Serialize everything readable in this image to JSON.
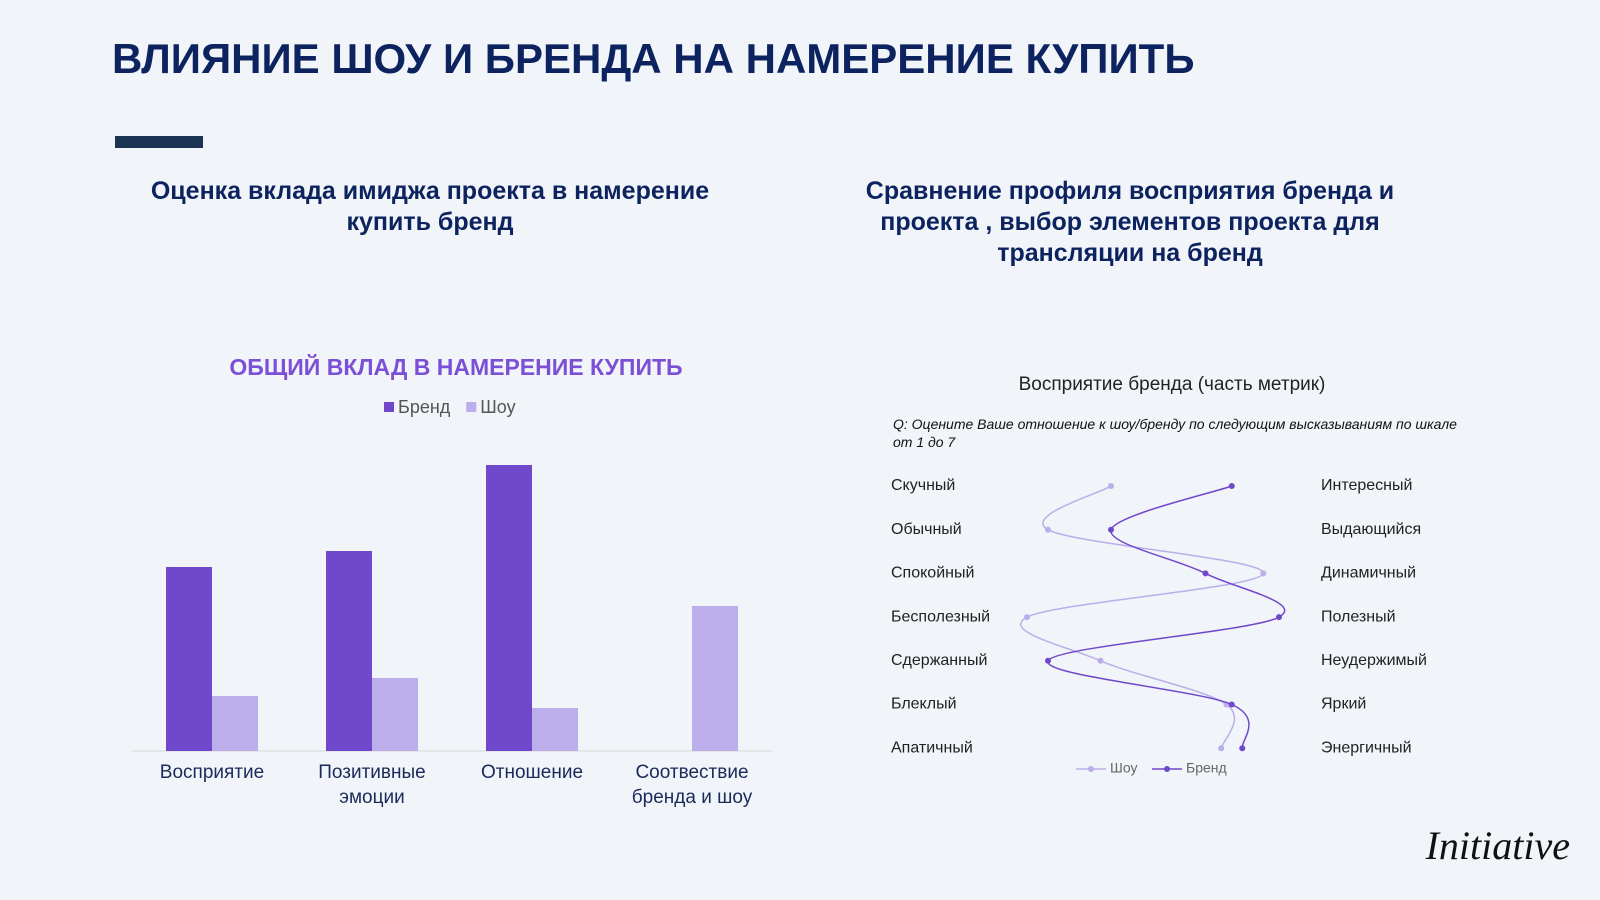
{
  "header": {
    "title": "ВЛИЯНИЕ ШОУ И БРЕНДА НА НАМЕРЕНИЕ КУПИТЬ"
  },
  "sections": [
    {
      "heading": "Оценка вклада имиджа проекта в намерение купить бренд"
    },
    {
      "heading": "Сравнение профиля восприятия бренда и проекта , выбор элементов проекта для трансляции на бренд"
    }
  ],
  "logo": "Initiative",
  "chart_data": [
    {
      "type": "bar",
      "title": "ОБЩИЙ ВКЛАД В НАМЕРЕНИЕ КУПИТЬ",
      "categories": [
        "Восприятие",
        "Позитивные эмоции",
        "Отношение",
        "Соотвествие бренда и шоу"
      ],
      "series": [
        {
          "name": "Бренд",
          "color": "#7048cc",
          "values": [
            184,
            200,
            286,
            null
          ]
        },
        {
          "name": "Шоу",
          "color": "#bbaeea",
          "values": [
            55,
            73,
            43,
            145
          ]
        }
      ],
      "ylim": [
        0,
        300
      ],
      "legend": "top"
    },
    {
      "type": "line",
      "orientation": "horizontal",
      "title": "Восприятие бренда (часть метрик)",
      "question": "Q: Оцените Ваше отношение к шоу/бренду по следующим высказываниям по шкале от  1 до 7",
      "categories": [
        "Скучный",
        "Обычный",
        "Спокойный",
        "Бесполезный",
        "Сдержанный",
        "Блеклый",
        "Апатичный"
      ],
      "right_labels": [
        "Интересный",
        "Выдающийся",
        "Динамичный",
        "Полезный",
        "Неудержимый",
        "Яркий",
        "Энергичный"
      ],
      "series": [
        {
          "name": "Шоу",
          "color": "#bbaeea",
          "values": [
            3.4,
            2.2,
            6.3,
            1.8,
            3.2,
            5.6,
            5.5
          ]
        },
        {
          "name": "Бренд",
          "color": "#7048cc",
          "values": [
            5.7,
            3.4,
            5.2,
            6.6,
            2.2,
            5.7,
            5.9
          ]
        }
      ],
      "xlim": [
        1,
        7
      ],
      "legend": "bottom"
    }
  ]
}
